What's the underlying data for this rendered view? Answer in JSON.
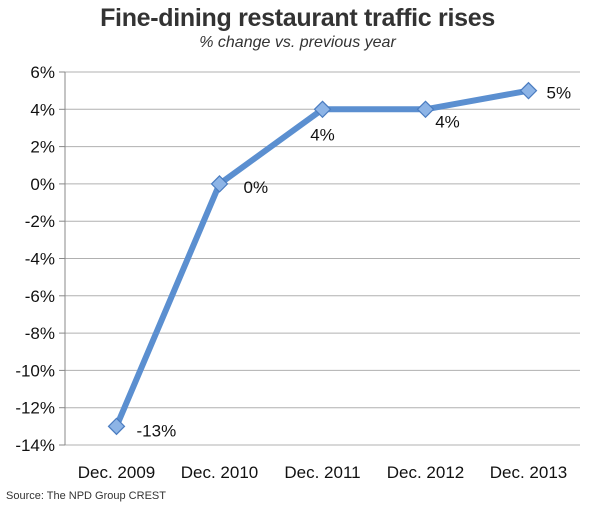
{
  "chart_data": {
    "type": "line",
    "title": "Fine-dining restaurant traffic rises",
    "subtitle": "% change vs. previous year",
    "source": "Source: The NPD Group CREST",
    "categories": [
      "Dec. 2009",
      "Dec. 2010",
      "Dec. 2011",
      "Dec. 2012",
      "Dec. 2013"
    ],
    "series": [
      {
        "values": [
          -13,
          0,
          4,
          4,
          5
        ]
      }
    ],
    "data_labels": [
      "-13%",
      "0%",
      "4%",
      "4%",
      "5%"
    ],
    "y_tick_values": [
      6,
      4,
      2,
      0,
      -2,
      -4,
      -6,
      -8,
      -10,
      -12,
      -14
    ],
    "y_tick_labels": [
      "6%",
      "4%",
      "2%",
      "0%",
      "-2%",
      "-4%",
      "-6%",
      "-8%",
      "-10%",
      "-12%",
      "-14%"
    ],
    "ylim": [
      -14,
      6
    ],
    "grid": true,
    "legend": "none",
    "colors": {
      "line": "#5b8fd0",
      "marker_fill": "#8db4e6",
      "marker_edge": "#4a7cc0",
      "grid": "#b0b0b0"
    }
  }
}
